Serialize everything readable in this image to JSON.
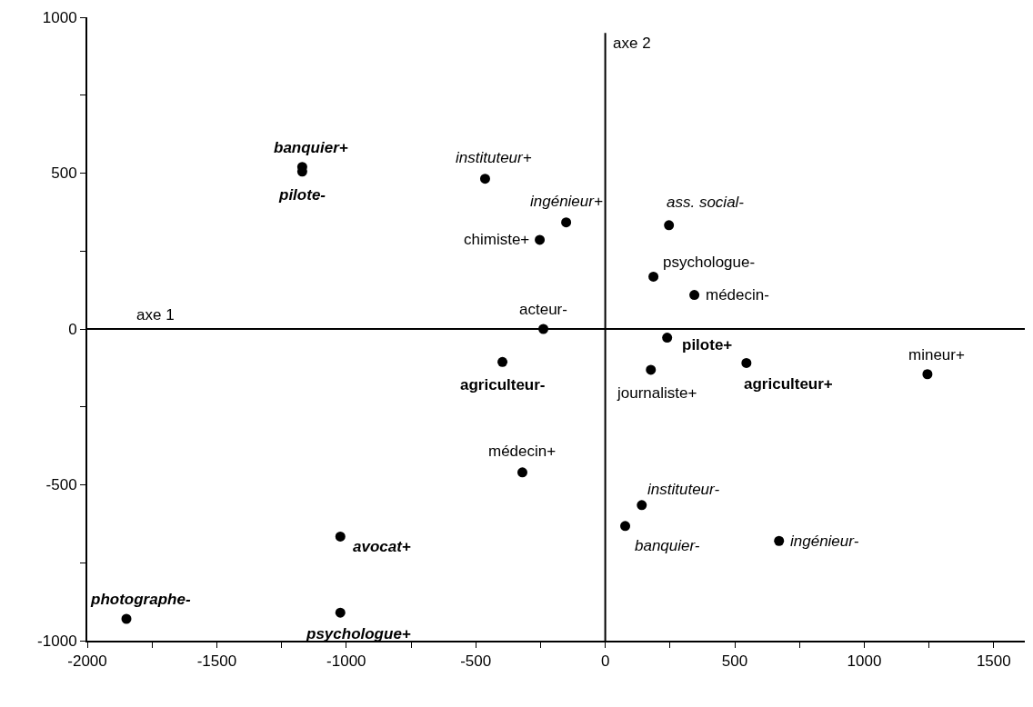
{
  "chart_data": {
    "type": "scatter",
    "x": [
      -1170,
      -1170,
      -464,
      -151,
      -253,
      -239,
      -397,
      246,
      186,
      344,
      239,
      176,
      545,
      1244,
      -320,
      141,
      77,
      671,
      -1023,
      -1849,
      -1023
    ],
    "values": [
      520,
      505,
      482,
      342,
      286,
      0,
      -106,
      333,
      168,
      109,
      -28,
      -131,
      -109,
      -145,
      -460,
      -565,
      -632,
      -680,
      -666,
      -930,
      -910
    ],
    "color": "#000000",
    "marker": "circle",
    "xlim": [
      -2000,
      1620
    ],
    "xticks": [
      -2000,
      {
        "value": -1750,
        "label": null
      },
      -1500,
      {
        "value": -1250,
        "label": null
      },
      -1000,
      {
        "value": -750,
        "label": null
      },
      -500,
      {
        "value": -250,
        "label": null
      },
      0,
      {
        "value": 250,
        "label": null
      },
      500,
      {
        "value": 750,
        "label": null
      },
      1000,
      {
        "value": 1250,
        "label": null
      },
      1500
    ],
    "ylim": [
      -1000,
      1000
    ],
    "yticks": [
      -1000,
      {
        "value": -750,
        "label": null
      },
      -500,
      {
        "value": -250,
        "label": null
      },
      0,
      {
        "value": 250,
        "label": null
      },
      500,
      {
        "value": 750,
        "label": null
      },
      1000
    ],
    "legend": false,
    "ref_lines": [
      {
        "axis": "y",
        "value": 0,
        "label": "axe 1"
      },
      {
        "axis": "x",
        "value": 0,
        "label": "axe 2"
      }
    ],
    "annotations": [
      {
        "text": "banquier+",
        "x": -1170,
        "y": 520
      },
      {
        "text": "pilote-",
        "x": -1170,
        "y": 505
      },
      {
        "text": "instituteur+",
        "x": -464,
        "y": 482
      },
      {
        "text": "ingénieur+",
        "x": -151,
        "y": 342
      },
      {
        "text": "chimiste+",
        "x": -253,
        "y": 286
      },
      {
        "text": "acteur-",
        "x": -239,
        "y": 0
      },
      {
        "text": "agriculteur-",
        "x": -397,
        "y": -106
      },
      {
        "text": "ass. social-",
        "x": 246,
        "y": 333
      },
      {
        "text": "psychologue-",
        "x": 186,
        "y": 168
      },
      {
        "text": "médecin-",
        "x": 344,
        "y": 109
      },
      {
        "text": "pilote+",
        "x": 239,
        "y": -28
      },
      {
        "text": "journaliste+",
        "x": 176,
        "y": -131
      },
      {
        "text": "agriculteur+",
        "x": 545,
        "y": -109
      },
      {
        "text": "mineur+",
        "x": 1244,
        "y": -145
      },
      {
        "text": "médecin+",
        "x": -320,
        "y": -460
      },
      {
        "text": "instituteur-",
        "x": 141,
        "y": -565
      },
      {
        "text": "banquier-",
        "x": 77,
        "y": -632
      },
      {
        "text": "ingénieur-",
        "x": 671,
        "y": -680
      },
      {
        "text": "avocat+",
        "x": -1023,
        "y": -666
      },
      {
        "text": "photographe-",
        "x": -1849,
        "y": -930
      },
      {
        "text": "psychologue+",
        "x": -1023,
        "y": -910
      }
    ]
  }
}
